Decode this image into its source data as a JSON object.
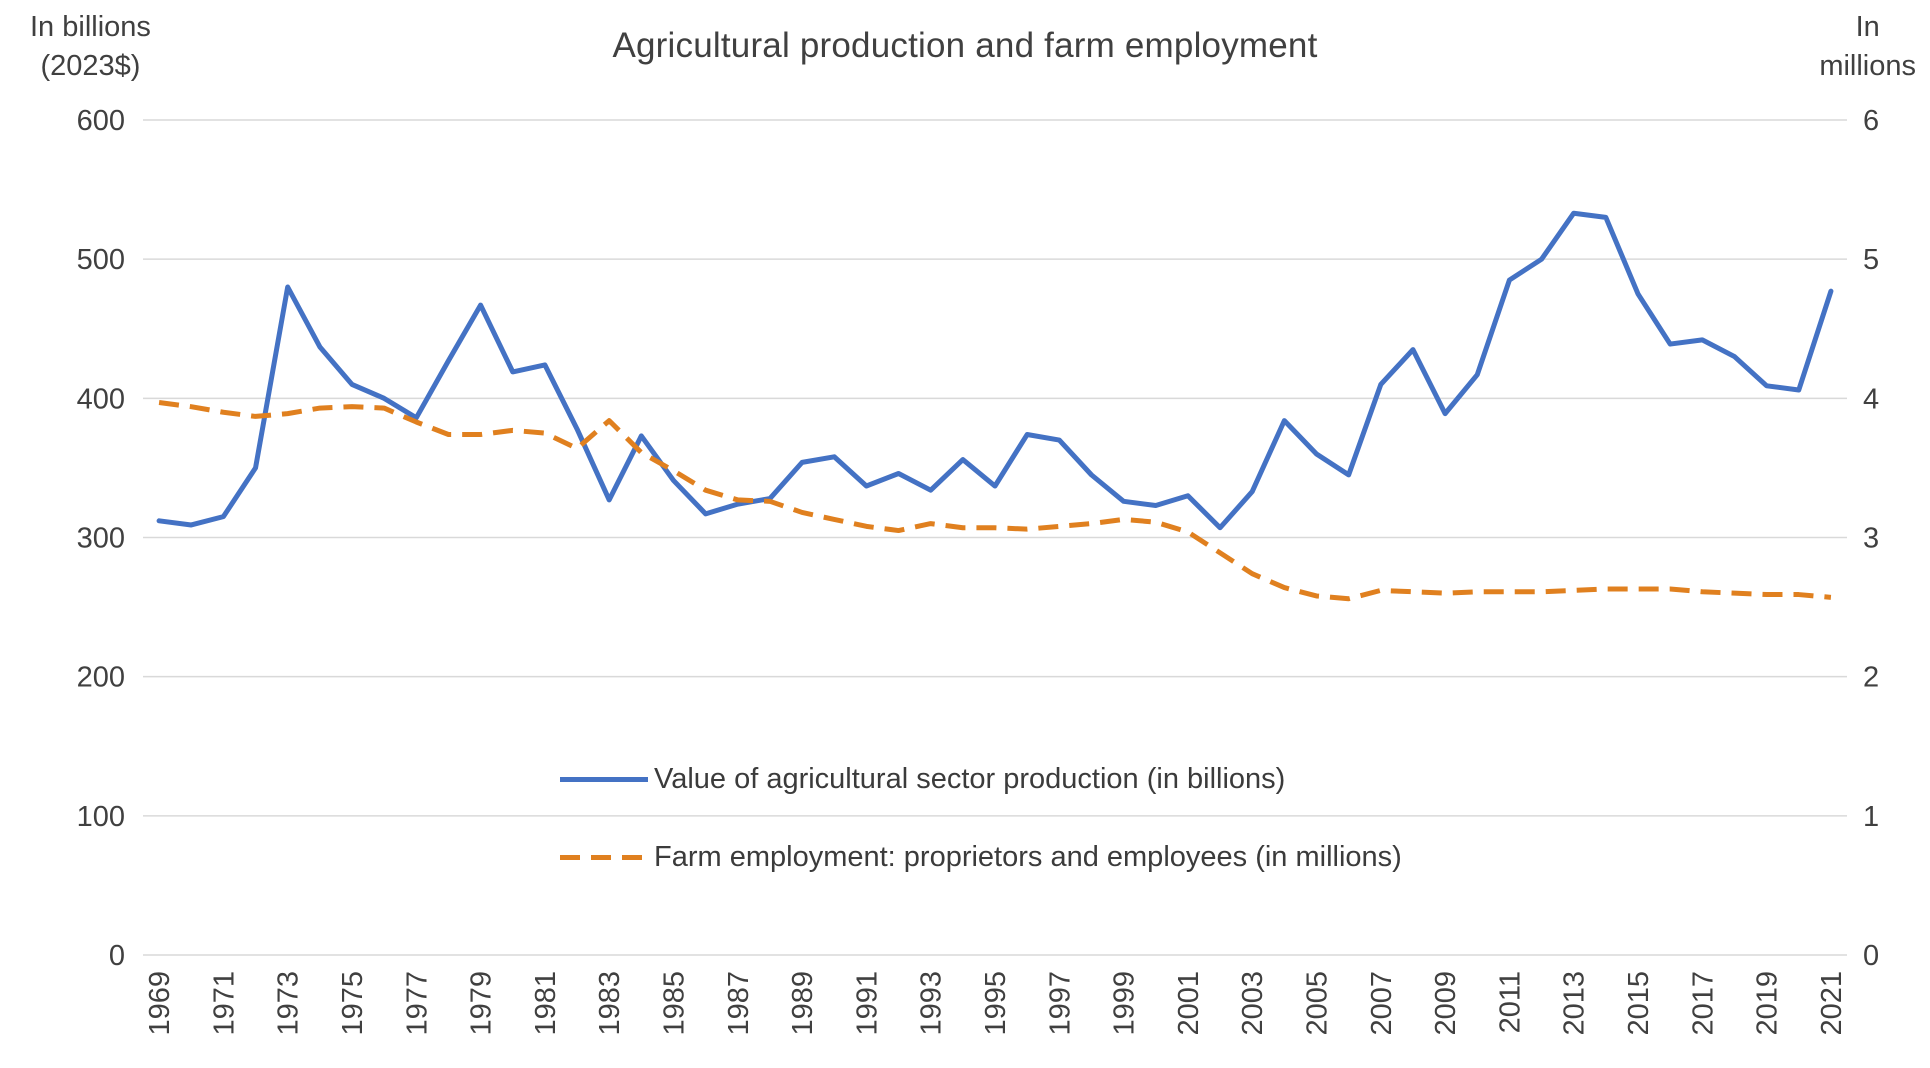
{
  "chart_data": {
    "type": "line",
    "title": "Agricultural production and farm employment",
    "grid": true,
    "legend_position": "inside-bottom-center",
    "left_axis": {
      "label": "In billions\n(2023$)",
      "min": 0,
      "max": 600,
      "ticks": [
        0,
        100,
        200,
        300,
        400,
        500,
        600
      ]
    },
    "right_axis": {
      "label": "In\nmillions",
      "min": 0,
      "max": 6,
      "ticks": [
        0,
        1,
        2,
        3,
        4,
        5,
        6
      ]
    },
    "x": [
      1969,
      1970,
      1971,
      1972,
      1973,
      1974,
      1975,
      1976,
      1977,
      1978,
      1979,
      1980,
      1981,
      1982,
      1983,
      1984,
      1985,
      1986,
      1987,
      1988,
      1989,
      1990,
      1991,
      1992,
      1993,
      1994,
      1995,
      1996,
      1997,
      1998,
      1999,
      2000,
      2001,
      2002,
      2003,
      2004,
      2005,
      2006,
      2007,
      2008,
      2009,
      2010,
      2011,
      2012,
      2013,
      2014,
      2015,
      2016,
      2017,
      2018,
      2019,
      2020,
      2021
    ],
    "x_tick_labels": [
      "1969",
      "1971",
      "1973",
      "1975",
      "1977",
      "1979",
      "1981",
      "1983",
      "1985",
      "1987",
      "1989",
      "1991",
      "1993",
      "1995",
      "1997",
      "1999",
      "2001",
      "2003",
      "2005",
      "2007",
      "2009",
      "2011",
      "2013",
      "2015",
      "2017",
      "2019",
      "2021"
    ],
    "series": [
      {
        "name": "Value of agricultural sector production (in billions)",
        "axis": "left",
        "color": "#4472C4",
        "style": "solid",
        "values": [
          312,
          309,
          315,
          350,
          480,
          437,
          410,
          400,
          386,
          427,
          467,
          419,
          424,
          378,
          327,
          373,
          341,
          317,
          324,
          328,
          354,
          358,
          337,
          346,
          334,
          356,
          337,
          374,
          370,
          345,
          326,
          323,
          330,
          307,
          333,
          384,
          360,
          345,
          410,
          435,
          389,
          417,
          485,
          500,
          533,
          530,
          475,
          439,
          442,
          430,
          409,
          406,
          477
        ]
      },
      {
        "name": "Farm employment: proprietors and employees (in millions)",
        "axis": "right",
        "color": "#E0801F",
        "style": "dashed",
        "values": [
          3.97,
          3.94,
          3.9,
          3.87,
          3.89,
          3.93,
          3.94,
          3.93,
          3.83,
          3.74,
          3.74,
          3.77,
          3.75,
          3.64,
          3.84,
          3.61,
          3.48,
          3.34,
          3.27,
          3.26,
          3.18,
          3.13,
          3.08,
          3.05,
          3.1,
          3.07,
          3.07,
          3.06,
          3.08,
          3.1,
          3.13,
          3.11,
          3.04,
          2.89,
          2.74,
          2.64,
          2.58,
          2.56,
          2.62,
          2.61,
          2.6,
          2.61,
          2.61,
          2.61,
          2.62,
          2.63,
          2.63,
          2.63,
          2.61,
          2.6,
          2.59,
          2.59,
          2.57
        ]
      }
    ],
    "colors": {
      "gridline": "#D9D9D9",
      "text": "#404040"
    }
  }
}
